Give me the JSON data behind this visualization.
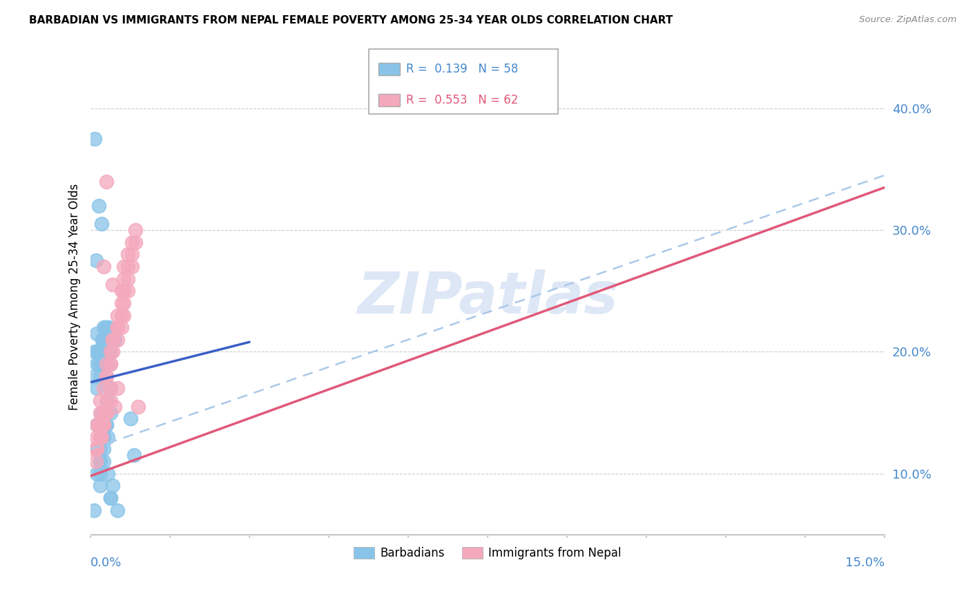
{
  "title": "BARBADIAN VS IMMIGRANTS FROM NEPAL FEMALE POVERTY AMONG 25-34 YEAR OLDS CORRELATION CHART",
  "source": "Source: ZipAtlas.com",
  "ylabel": "Female Poverty Among 25-34 Year Olds",
  "ytick_labels": [
    "10.0%",
    "20.0%",
    "30.0%",
    "40.0%"
  ],
  "ytick_vals": [
    0.1,
    0.2,
    0.3,
    0.4
  ],
  "xlim": [
    0.0,
    0.15
  ],
  "ylim": [
    0.05,
    0.44
  ],
  "color_barbadian": "#89c4e8",
  "color_nepal": "#f4a8bc",
  "color_line_barbadian": "#3a5fc8",
  "color_line_nepal": "#e05878",
  "color_line_dashed": "#aac8e8",
  "watermark_text": "ZIPatlas",
  "r1_text": "R =  0.139   N = 58",
  "r2_text": "R =  0.553   N = 62",
  "barb_line_x": [
    0.0,
    0.03
  ],
  "barb_line_y": [
    0.175,
    0.208
  ],
  "nepal_line_x": [
    0.0,
    0.15
  ],
  "nepal_line_y": [
    0.098,
    0.335
  ],
  "dashed_line_x": [
    0.0,
    0.15
  ],
  "dashed_line_y": [
    0.12,
    0.345
  ],
  "barbadian_x": [
    0.0008,
    0.0015,
    0.001,
    0.002,
    0.0012,
    0.0025,
    0.0008,
    0.0018,
    0.003,
    0.0022,
    0.0015,
    0.002,
    0.0025,
    0.003,
    0.0035,
    0.0018,
    0.0012,
    0.0022,
    0.0028,
    0.0015,
    0.0008,
    0.0012,
    0.0018,
    0.0025,
    0.0038,
    0.0045,
    0.0032,
    0.0018,
    0.0012,
    0.0006,
    0.0025,
    0.0032,
    0.0038,
    0.002,
    0.0012,
    0.0025,
    0.0018,
    0.003,
    0.0038,
    0.0025,
    0.0012,
    0.0018,
    0.0025,
    0.003,
    0.0018,
    0.0025,
    0.0032,
    0.0038,
    0.0018,
    0.0012,
    0.0025,
    0.0042,
    0.0032,
    0.0038,
    0.005,
    0.0018,
    0.0075,
    0.0082
  ],
  "barbadian_y": [
    0.375,
    0.32,
    0.275,
    0.305,
    0.215,
    0.22,
    0.2,
    0.19,
    0.22,
    0.21,
    0.19,
    0.2,
    0.21,
    0.2,
    0.22,
    0.19,
    0.2,
    0.21,
    0.22,
    0.2,
    0.18,
    0.19,
    0.2,
    0.19,
    0.2,
    0.21,
    0.19,
    0.18,
    0.17,
    0.07,
    0.14,
    0.16,
    0.17,
    0.15,
    0.14,
    0.13,
    0.12,
    0.14,
    0.15,
    0.13,
    0.12,
    0.11,
    0.13,
    0.14,
    0.11,
    0.12,
    0.13,
    0.08,
    0.09,
    0.1,
    0.11,
    0.09,
    0.1,
    0.08,
    0.07,
    0.1,
    0.145,
    0.115
  ],
  "nepal_x": [
    0.0008,
    0.0015,
    0.001,
    0.002,
    0.0012,
    0.0025,
    0.0018,
    0.003,
    0.0022,
    0.0012,
    0.0018,
    0.0025,
    0.003,
    0.0038,
    0.0018,
    0.0012,
    0.0025,
    0.003,
    0.0018,
    0.0025,
    0.003,
    0.0038,
    0.0018,
    0.0012,
    0.0025,
    0.0042,
    0.003,
    0.0038,
    0.005,
    0.0018,
    0.0025,
    0.003,
    0.0038,
    0.0042,
    0.005,
    0.0058,
    0.0062,
    0.005,
    0.0042,
    0.0038,
    0.003,
    0.0042,
    0.005,
    0.0058,
    0.0062,
    0.007,
    0.005,
    0.0058,
    0.0062,
    0.007,
    0.0078,
    0.0058,
    0.0062,
    0.007,
    0.0078,
    0.0085,
    0.0062,
    0.007,
    0.0078,
    0.0085,
    0.0045,
    0.009
  ],
  "nepal_y": [
    0.12,
    0.14,
    0.11,
    0.13,
    0.12,
    0.14,
    0.13,
    0.15,
    0.14,
    0.12,
    0.13,
    0.14,
    0.15,
    0.16,
    0.14,
    0.13,
    0.15,
    0.16,
    0.14,
    0.15,
    0.34,
    0.17,
    0.15,
    0.14,
    0.27,
    0.255,
    0.18,
    0.19,
    0.17,
    0.16,
    0.17,
    0.18,
    0.19,
    0.2,
    0.21,
    0.22,
    0.23,
    0.22,
    0.21,
    0.2,
    0.19,
    0.21,
    0.22,
    0.23,
    0.24,
    0.25,
    0.23,
    0.24,
    0.25,
    0.26,
    0.27,
    0.25,
    0.26,
    0.27,
    0.28,
    0.29,
    0.27,
    0.28,
    0.29,
    0.3,
    0.155,
    0.155
  ]
}
